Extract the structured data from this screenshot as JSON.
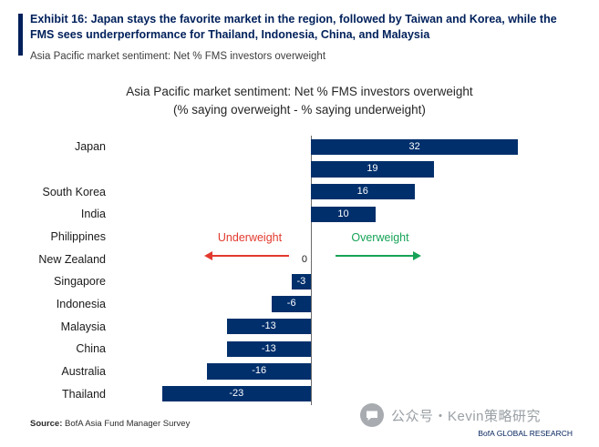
{
  "header": {
    "title_lines": [
      "Exhibit 16: Japan stays the favorite market in the region, followed by Taiwan and Korea, while the",
      "FMS sees underperformance for Thailand, Indonesia, China, and Malaysia"
    ],
    "subtitle": "Asia Pacific market sentiment: Net % FMS investors overweight"
  },
  "chart_data": {
    "type": "bar",
    "orientation": "horizontal",
    "title": "Asia Pacific market sentiment: Net % FMS investors overweight",
    "subtitle": "(% saying overweight - % saying underweight)",
    "categories": [
      "Japan",
      "",
      "South Korea",
      "India",
      "Philippines",
      "New Zealand",
      "Singapore",
      "Indonesia",
      "Malaysia",
      "China",
      "Australia",
      "Thailand"
    ],
    "values": [
      32,
      19,
      16,
      10,
      null,
      0,
      -3,
      -6,
      -13,
      -13,
      -16,
      -23
    ],
    "zero_axis_label": "0",
    "bar_color": "#002f6c",
    "value_label_color": "#ffffff",
    "xlim": [
      -32,
      45
    ],
    "grid": false,
    "legend": "none",
    "annotations": [
      {
        "label": "Underweight",
        "color": "#e23a2e",
        "direction": "left"
      },
      {
        "label": "Overweight",
        "color": "#17a357",
        "direction": "right"
      }
    ]
  },
  "footer": {
    "source_label": "Source:",
    "source_text": " BofA Asia Fund Manager Survey",
    "watermark_text": "公众号・Kevin策略研究",
    "brand_text": "BofA GLOBAL RESEARCH"
  }
}
